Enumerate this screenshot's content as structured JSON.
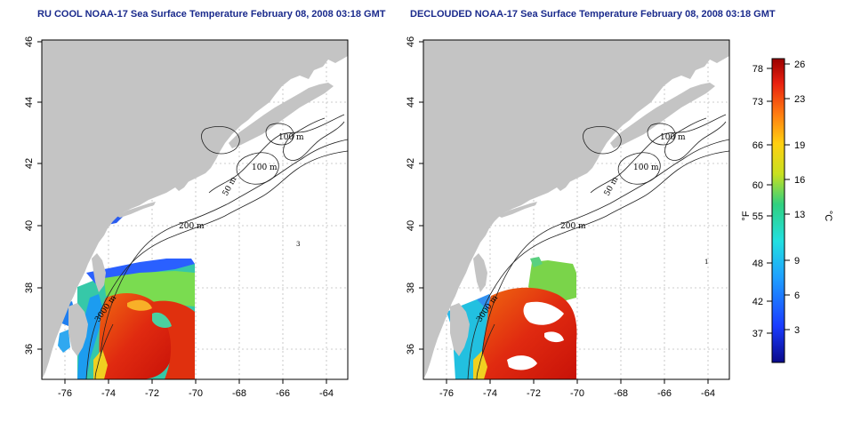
{
  "panels": [
    {
      "title": "RU COOL NOAA-17 Sea Surface Temperature February 08, 2008 03:18 GMT",
      "contours": [
        "100 m",
        "100 m",
        "50 m",
        "200 m",
        "3000 m",
        "3"
      ],
      "variant": "cool"
    },
    {
      "title": "DECLOUDED NOAA-17 Sea Surface Temperature February 08, 2008 03:18 GMT",
      "contours": [
        "100 m",
        "100 m",
        "50 m",
        "200 m",
        "3000 m",
        "1"
      ],
      "variant": "declouded"
    }
  ],
  "axes": {
    "lon_ticks": [
      "-76",
      "-74",
      "-72",
      "-70",
      "-68",
      "-66",
      "-64"
    ],
    "lat_ticks": [
      "46",
      "44",
      "42",
      "40",
      "38",
      "36"
    ]
  },
  "colorbar": {
    "f_ticks": [
      "78",
      "73",
      "66",
      "60",
      "55",
      "48",
      "42",
      "37"
    ],
    "c_ticks": [
      "26",
      "23",
      "19",
      "16",
      "13",
      "9",
      "6",
      "3"
    ],
    "f_unit": "°F",
    "c_unit": "°C"
  },
  "colors": {
    "land": "#c4c4c4",
    "ocean": "#ffffff",
    "title": "#1a2a8c",
    "grid": "#bdbdbd"
  }
}
